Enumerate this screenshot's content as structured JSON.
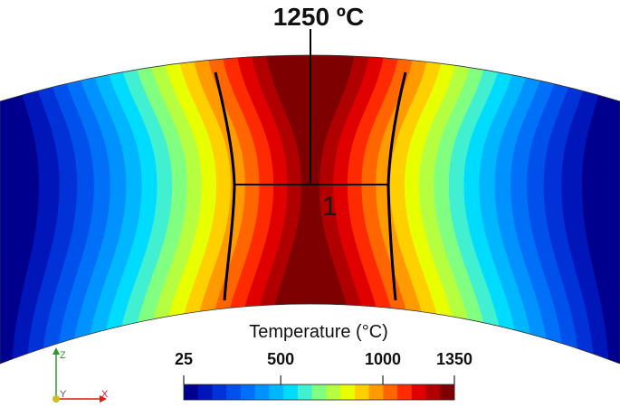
{
  "annotation": {
    "isotherm_label": "1250 ºC",
    "line_label": "1"
  },
  "colorbar": {
    "title": "Temperature (°C)",
    "min": 25,
    "max": 1350,
    "ticks": [
      {
        "value": 25,
        "label": "25"
      },
      {
        "value": 500,
        "label": "500"
      },
      {
        "value": 1000,
        "label": "1000"
      },
      {
        "value": 1350,
        "label": "1350"
      }
    ],
    "colors": [
      "#00008f",
      "#0016b8",
      "#0032d8",
      "#0050ec",
      "#0070f8",
      "#0093ff",
      "#00b7ff",
      "#00dcff",
      "#40f0d0",
      "#80ff80",
      "#b5ff40",
      "#e8ff00",
      "#ffd000",
      "#ff9a00",
      "#ff6600",
      "#ff2a00",
      "#e00000",
      "#b00000",
      "#7f0000"
    ]
  },
  "triad": {
    "x_label": "X",
    "y_label": "Y",
    "z_label": "Z",
    "x_color": "#d42020",
    "y_color": "#c9c020",
    "z_color": "#2a9a2a"
  },
  "plot": {
    "field": "temperature",
    "peak_color": "#7f0000",
    "isotherm_color": "#000000"
  }
}
